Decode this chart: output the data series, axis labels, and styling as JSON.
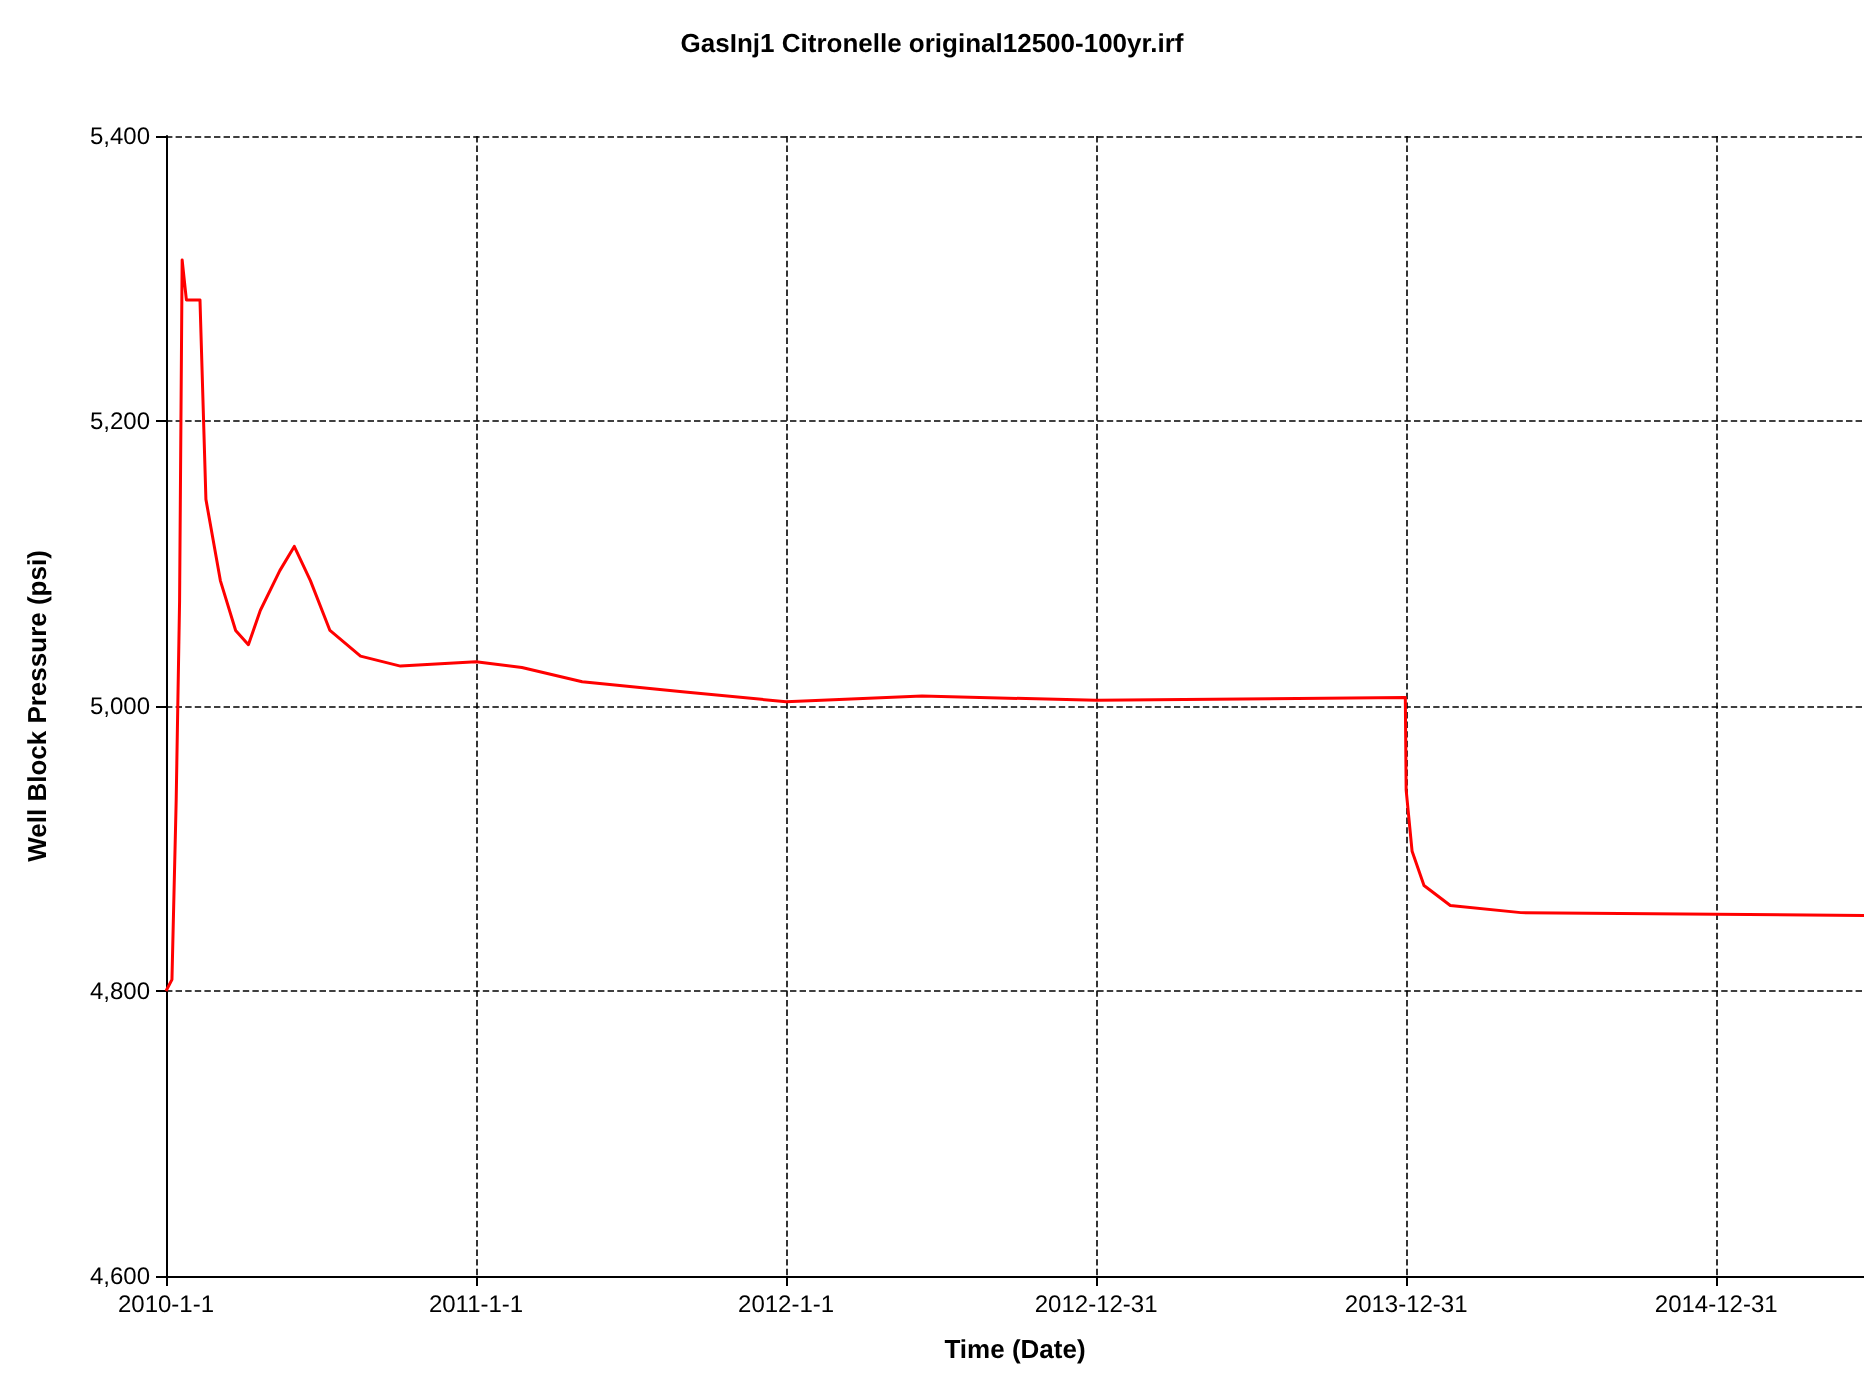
{
  "chart_data": {
    "type": "line",
    "title": "GasInj1 Citronelle original12500-100yr.irf",
    "xlabel": "Time (Date)",
    "ylabel": "Well Block Pressure (psi)",
    "x": [
      "2010-01-01",
      "2010-01-08",
      "2010-01-13",
      "2010-01-17",
      "2010-01-20",
      "2010-01-25",
      "2010-02-10",
      "2010-02-17",
      "2010-03-06",
      "2010-03-24",
      "2010-04-08",
      "2010-04-22",
      "2010-05-15",
      "2010-06-01",
      "2010-06-20",
      "2010-07-13",
      "2010-08-18",
      "2010-10-04",
      "2011-01-01",
      "2011-02-24",
      "2011-05-06",
      "2011-09-01",
      "2012-01-01",
      "2012-06-09",
      "2012-12-31",
      "2013-12-30",
      "2013-12-31",
      "2014-01-07",
      "2014-01-21",
      "2014-02-21",
      "2014-05-15",
      "2015-06-23"
    ],
    "series": [
      {
        "color": "#ff0000",
        "values": [
          4800,
          4808,
          4934,
          5074,
          5313,
          5285,
          5285,
          5145,
          5088,
          5053,
          5043,
          5067,
          5095,
          5112,
          5088,
          5053,
          5035,
          5028,
          5031,
          5027,
          5017,
          5010,
          5003,
          5007,
          5004,
          5006,
          4941,
          4898,
          4874,
          4860,
          4855,
          4853
        ]
      }
    ],
    "xlim": [
      "2010-01-01",
      "2015-06-23"
    ],
    "xticks": [
      {
        "value": "2010-01-01",
        "label": "2010-1-1"
      },
      {
        "value": "2011-01-01",
        "label": "2011-1-1"
      },
      {
        "value": "2012-01-01",
        "label": "2012-1-1"
      },
      {
        "value": "2012-12-31",
        "label": "2012-12-31"
      },
      {
        "value": "2013-12-31",
        "label": "2013-12-31"
      },
      {
        "value": "2014-12-31",
        "label": "2014-12-31"
      }
    ],
    "ylim": [
      4600,
      5400
    ],
    "yticks": [
      {
        "value": 4600,
        "label": "4,600"
      },
      {
        "value": 4800,
        "label": "4,800"
      },
      {
        "value": 5000,
        "label": "5,000"
      },
      {
        "value": 5200,
        "label": "5,200"
      },
      {
        "value": 5400,
        "label": "5,400"
      }
    ],
    "grid": true,
    "marker": "none",
    "line_style": "solid"
  }
}
